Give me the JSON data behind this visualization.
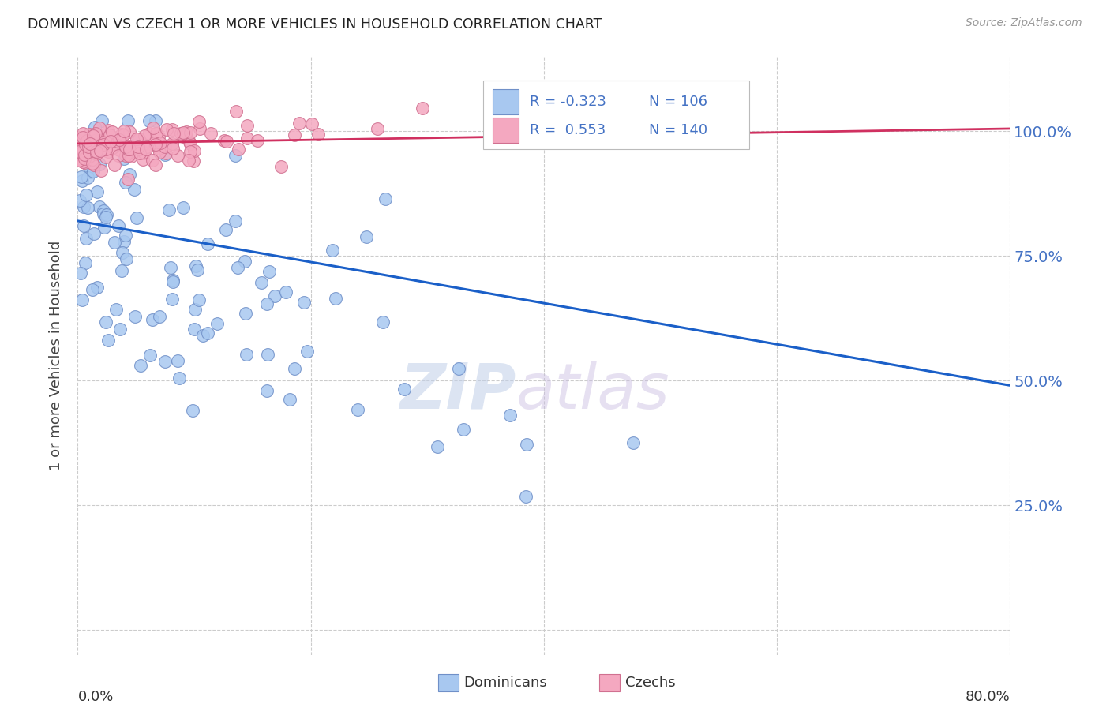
{
  "title": "DOMINICAN VS CZECH 1 OR MORE VEHICLES IN HOUSEHOLD CORRELATION CHART",
  "source": "Source: ZipAtlas.com",
  "ylabel": "1 or more Vehicles in Household",
  "xlim": [
    0.0,
    0.8
  ],
  "ylim": [
    -0.05,
    1.15
  ],
  "yticks": [
    0.0,
    0.25,
    0.5,
    0.75,
    1.0
  ],
  "ytick_labels": [
    "",
    "25.0%",
    "50.0%",
    "75.0%",
    "100.0%"
  ],
  "watermark_zip": "ZIP",
  "watermark_atlas": "atlas",
  "dominican_color": "#a8c8f0",
  "czech_color": "#f4a8c0",
  "dominican_edge": "#7090c8",
  "czech_edge": "#d07090",
  "trend_blue_color": "#1a5fc8",
  "trend_pink_color": "#d03060",
  "blue_trend": [
    0.0,
    0.82,
    0.8,
    0.49
  ],
  "pink_trend": [
    0.0,
    0.975,
    0.8,
    1.005
  ],
  "blue_R": "-0.323",
  "blue_N": "106",
  "pink_R": "0.553",
  "pink_N": "140",
  "legend_label_blue": "Dominicans",
  "legend_label_pink": "Czechs",
  "blue_seed": 42,
  "pink_seed": 99
}
